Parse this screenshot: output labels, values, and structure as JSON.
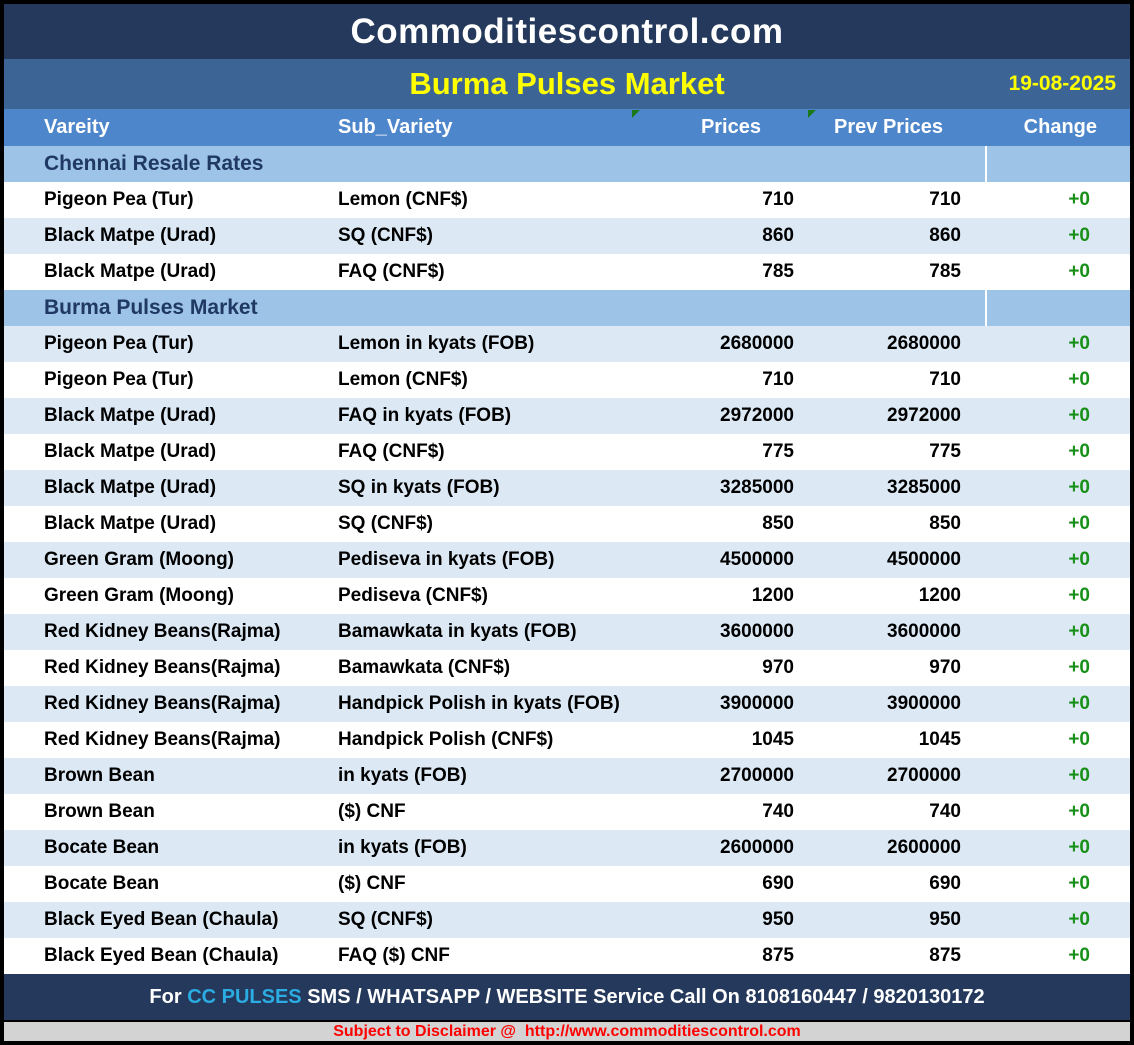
{
  "header": {
    "site_title": "Commoditiescontrol.com",
    "report_title": "Burma Pulses Market",
    "date": "19-08-2025"
  },
  "columns": [
    "Vareity",
    "Sub_Variety",
    "Prices",
    "Prev Prices",
    "Change"
  ],
  "sections": [
    {
      "title": "Chennai Resale Rates",
      "start_shade": "white",
      "rows": [
        {
          "variety": "Pigeon Pea (Tur)",
          "sub_variety": "Lemon (CNF$)",
          "price": "710",
          "prev_price": "710",
          "change": "+0"
        },
        {
          "variety": "Black Matpe (Urad)",
          "sub_variety": "SQ (CNF$)",
          "price": "860",
          "prev_price": "860",
          "change": "+0"
        },
        {
          "variety": "Black Matpe (Urad)",
          "sub_variety": "FAQ (CNF$)",
          "price": "785",
          "prev_price": "785",
          "change": "+0"
        }
      ]
    },
    {
      "title": "Burma Pulses Market",
      "start_shade": "blue",
      "rows": [
        {
          "variety": "Pigeon Pea (Tur)",
          "sub_variety": "Lemon in kyats (FOB)",
          "price": "2680000",
          "prev_price": "2680000",
          "change": "+0"
        },
        {
          "variety": "Pigeon Pea (Tur)",
          "sub_variety": "Lemon (CNF$)",
          "price": "710",
          "prev_price": "710",
          "change": "+0"
        },
        {
          "variety": "Black Matpe (Urad)",
          "sub_variety": "FAQ in kyats (FOB)",
          "price": "2972000",
          "prev_price": "2972000",
          "change": "+0"
        },
        {
          "variety": "Black Matpe (Urad)",
          "sub_variety": "FAQ (CNF$)",
          "price": "775",
          "prev_price": "775",
          "change": "+0"
        },
        {
          "variety": "Black Matpe (Urad)",
          "sub_variety": "SQ in kyats (FOB)",
          "price": "3285000",
          "prev_price": "3285000",
          "change": "+0"
        },
        {
          "variety": "Black Matpe (Urad)",
          "sub_variety": "SQ (CNF$)",
          "price": "850",
          "prev_price": "850",
          "change": "+0"
        },
        {
          "variety": "Green Gram (Moong)",
          "sub_variety": "Pediseva in kyats (FOB)",
          "price": "4500000",
          "prev_price": "4500000",
          "change": "+0"
        },
        {
          "variety": "Green Gram (Moong)",
          "sub_variety": "Pediseva (CNF$)",
          "price": "1200",
          "prev_price": "1200",
          "change": "+0"
        },
        {
          "variety": "Red Kidney Beans(Rajma)",
          "sub_variety": "Bamawkata in kyats (FOB)",
          "price": "3600000",
          "prev_price": "3600000",
          "change": "+0"
        },
        {
          "variety": "Red Kidney Beans(Rajma)",
          "sub_variety": "Bamawkata (CNF$)",
          "price": "970",
          "prev_price": "970",
          "change": "+0"
        },
        {
          "variety": "Red Kidney Beans(Rajma)",
          "sub_variety": "Handpick Polish in kyats (FOB)",
          "price": "3900000",
          "prev_price": "3900000",
          "change": "+0"
        },
        {
          "variety": "Red Kidney Beans(Rajma)",
          "sub_variety": "Handpick Polish (CNF$)",
          "price": "1045",
          "prev_price": "1045",
          "change": "+0"
        },
        {
          "variety": "Brown Bean",
          "sub_variety": "in kyats (FOB)",
          "price": "2700000",
          "prev_price": "2700000",
          "change": "+0"
        },
        {
          "variety": "Brown Bean",
          "sub_variety": "($) CNF",
          "price": "740",
          "prev_price": "740",
          "change": "+0"
        },
        {
          "variety": "Bocate Bean",
          "sub_variety": "in kyats (FOB)",
          "price": "2600000",
          "prev_price": "2600000",
          "change": "+0"
        },
        {
          "variety": "Bocate Bean",
          "sub_variety": "($) CNF",
          "price": "690",
          "prev_price": "690",
          "change": "+0"
        },
        {
          "variety": "Black Eyed Bean (Chaula)",
          "sub_variety": "SQ (CNF$)",
          "price": "950",
          "prev_price": "950",
          "change": "+0"
        },
        {
          "variety": "Black Eyed Bean (Chaula)",
          "sub_variety": "FAQ ($) CNF",
          "price": "875",
          "prev_price": "875",
          "change": "+0"
        }
      ]
    }
  ],
  "footer": {
    "service_prefix": "For ",
    "service_brand": "CC PULSES",
    "service_suffix": " SMS / WHATSAPP / WEBSITE Service Call On 8108160447 / 9820130172",
    "disclaimer_prefix": "Subject to Disclaimer @  ",
    "disclaimer_url": "http://www.commoditiescontrol.com"
  },
  "colors": {
    "title_band": "#24395B",
    "subtitle_band": "#3C6595",
    "column_header": "#4E86CB",
    "section_band": "#9DC3E6",
    "section_text": "#1F3864",
    "alt_row": "#DCE9F5",
    "change_green": "#189018",
    "note_green": "#1A7A1A",
    "accent_yellow": "#FFFF00",
    "brand_cyan": "#2BACE2",
    "disclaimer_red": "#FF0000",
    "disclaimer_band": "#D3D3D3"
  }
}
